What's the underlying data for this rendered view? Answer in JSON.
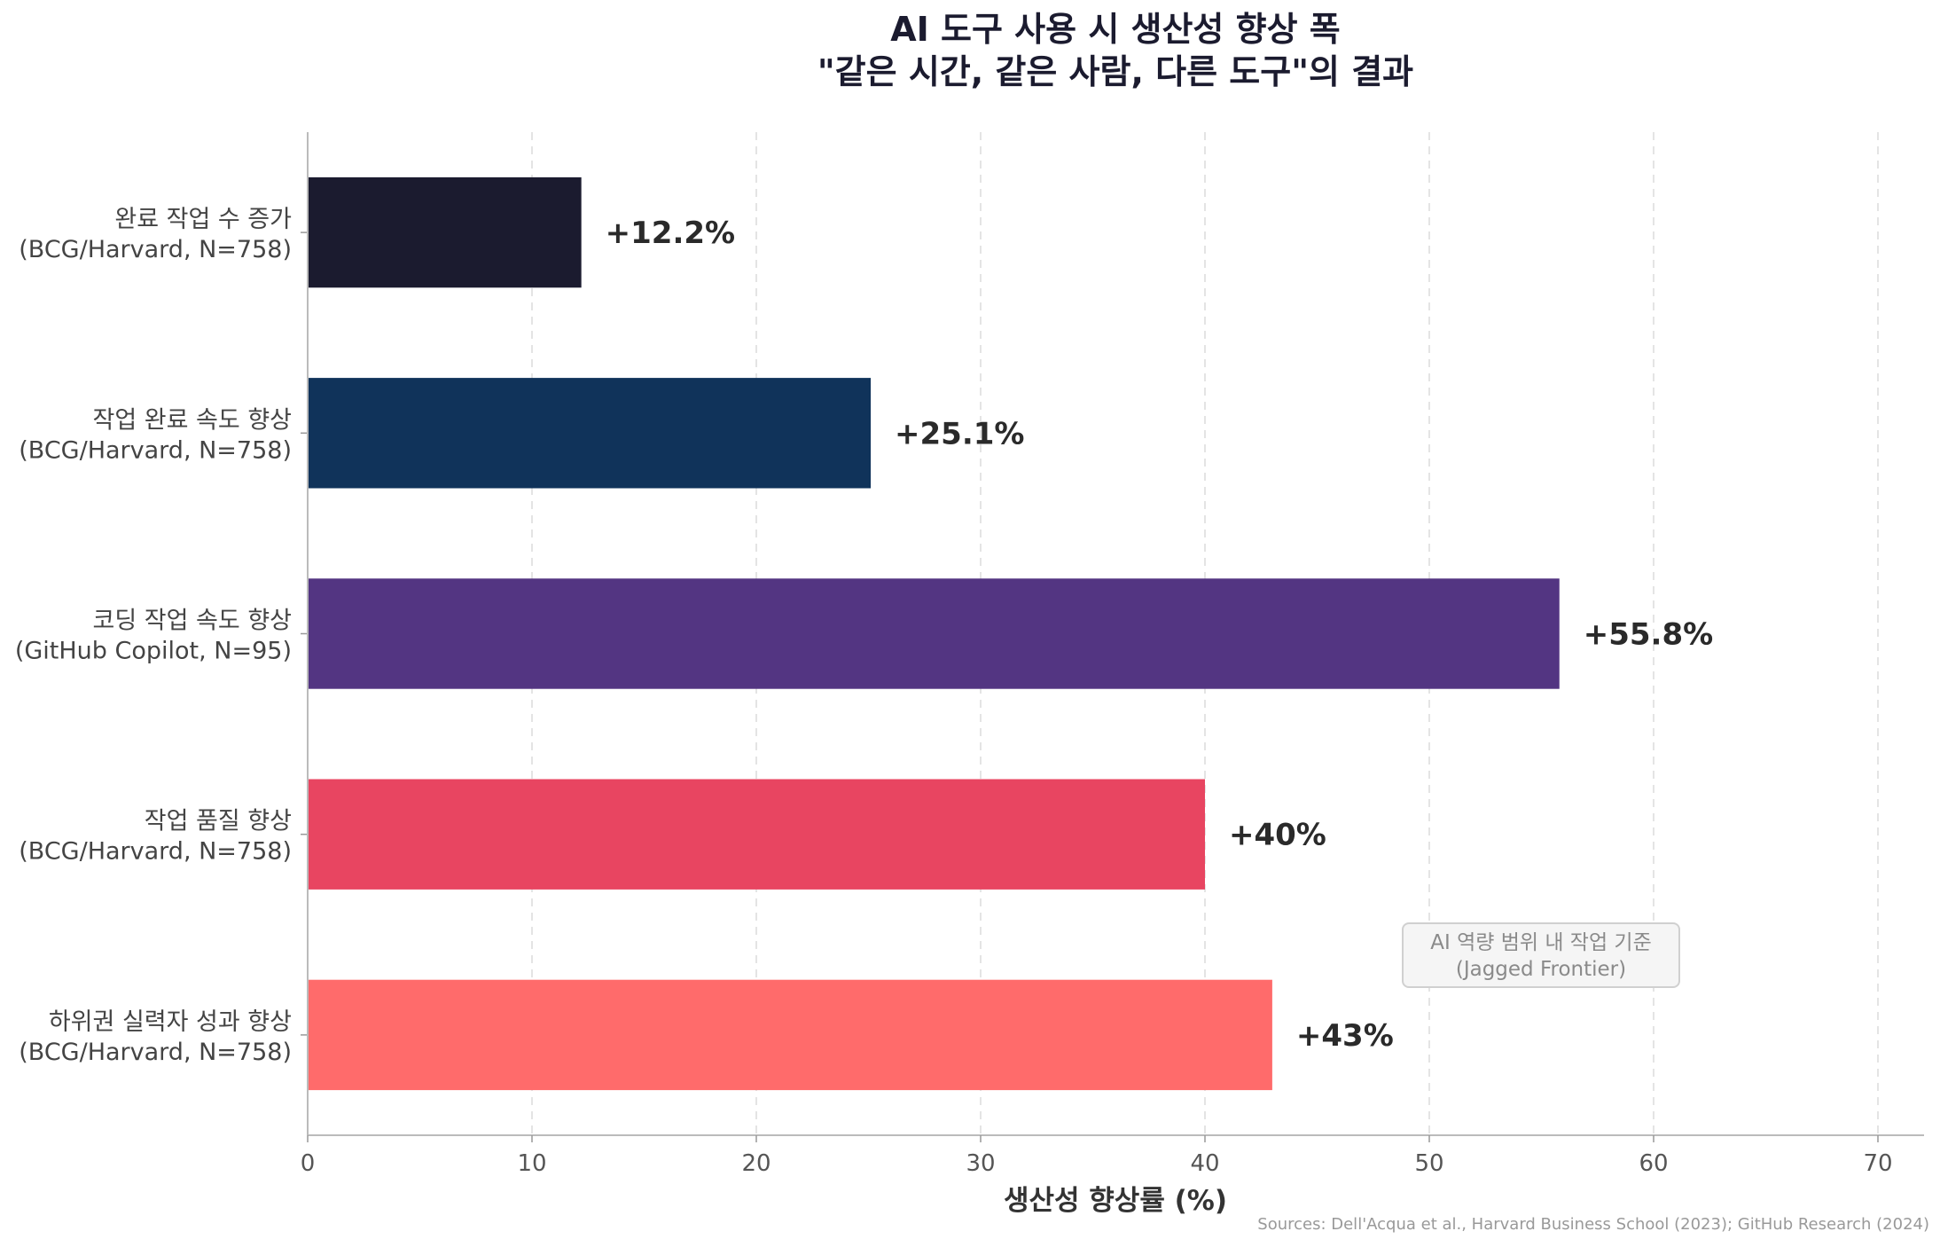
{
  "chart_data": {
    "type": "bar",
    "orientation": "horizontal",
    "title_line1": "AI 도구 사용 시 생산성 향상 폭",
    "title_line2": "\"같은 시간, 같은 사람, 다른 도구\"의 결과",
    "xlabel": "생산성 향상률 (%)",
    "ylabel": "",
    "xlim": [
      0,
      72
    ],
    "xticks": [
      0,
      10,
      20,
      30,
      40,
      50,
      60,
      70
    ],
    "grid": "x-dashed",
    "categories": [
      {
        "line1": "완료 작업 수 증가",
        "line2": "(BCG/Harvard, N=758)"
      },
      {
        "line1": "작업 완료 속도 향상",
        "line2": "(BCG/Harvard, N=758)"
      },
      {
        "line1": "코딩 작업 속도 향상",
        "line2": "(GitHub Copilot, N=95)"
      },
      {
        "line1": "작업 품질 향상",
        "line2": "(BCG/Harvard, N=758)"
      },
      {
        "line1": "하위권 실력자 성과 향상",
        "line2": "(BCG/Harvard, N=758)"
      }
    ],
    "values": [
      12.2,
      25.1,
      55.8,
      40,
      43
    ],
    "value_labels": [
      "+12.2%",
      "+25.1%",
      "+55.8%",
      "+40%",
      "+43%"
    ],
    "colors": [
      "#1b1b2f",
      "#10335a",
      "#533582",
      "#e84561",
      "#ff6b6b"
    ],
    "annotation": {
      "line1": "AI 역량 범위 내 작업 기준",
      "line2": "(Jagged Frontier)"
    },
    "source": "Sources: Dell'Acqua et al., Harvard Business School (2023); GitHub Research (2024)"
  }
}
